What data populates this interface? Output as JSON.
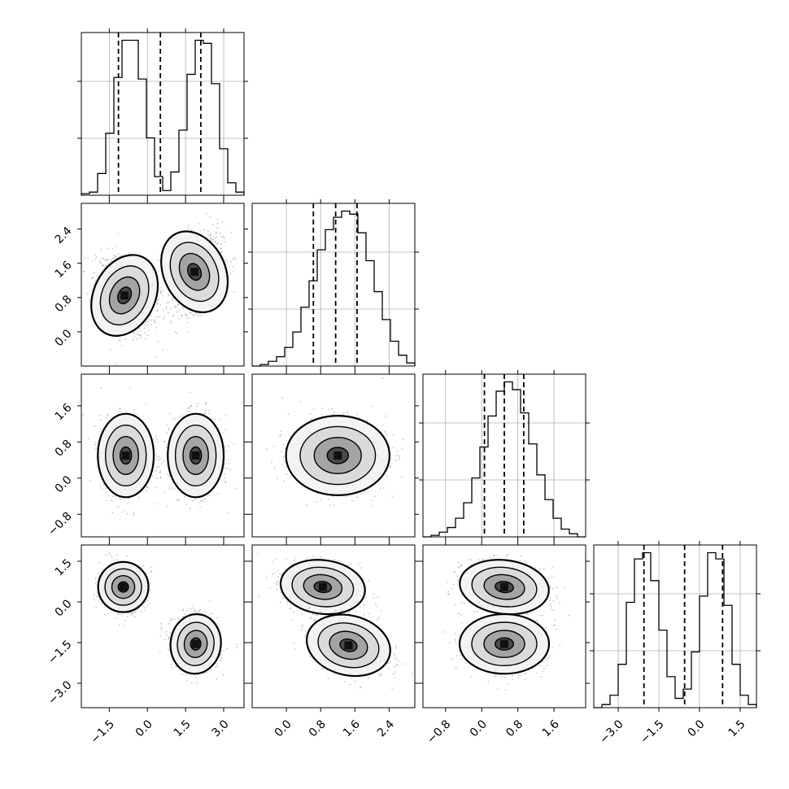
{
  "chart_data": {
    "type": "corner",
    "parameters": 4,
    "grid": true,
    "colors": {
      "hist": "#000000",
      "contour": "#000000",
      "points": "#7f7f7f",
      "grid": "#b0b0b0"
    },
    "diagonal": [
      {
        "param": 0,
        "xlim": [
          -2.6,
          3.8
        ],
        "quantile_lines": [
          -1.14,
          0.51,
          2.1
        ],
        "bins": [
          {
            "x": -2.6,
            "y": 1
          },
          {
            "x": -2.28,
            "y": 2
          },
          {
            "x": -1.96,
            "y": 14
          },
          {
            "x": -1.64,
            "y": 40
          },
          {
            "x": -1.32,
            "y": 76
          },
          {
            "x": -1.0,
            "y": 100
          },
          {
            "x": -0.68,
            "y": 100
          },
          {
            "x": -0.36,
            "y": 75
          },
          {
            "x": -0.04,
            "y": 37
          },
          {
            "x": 0.28,
            "y": 12
          },
          {
            "x": 0.6,
            "y": 3
          },
          {
            "x": 0.92,
            "y": 15
          },
          {
            "x": 1.24,
            "y": 42
          },
          {
            "x": 1.56,
            "y": 78
          },
          {
            "x": 1.88,
            "y": 100
          },
          {
            "x": 2.2,
            "y": 98
          },
          {
            "x": 2.52,
            "y": 72
          },
          {
            "x": 2.84,
            "y": 30
          },
          {
            "x": 3.16,
            "y": 8
          },
          {
            "x": 3.48,
            "y": 2
          }
        ],
        "hist_max": 100
      },
      {
        "param": 1,
        "xlim": [
          -0.8,
          3.0
        ],
        "quantile_lines": [
          0.63,
          1.15,
          1.65
        ],
        "bins": [
          {
            "x": -0.8,
            "y": 0
          },
          {
            "x": -0.61,
            "y": 1
          },
          {
            "x": -0.42,
            "y": 3
          },
          {
            "x": -0.23,
            "y": 6
          },
          {
            "x": -0.04,
            "y": 12
          },
          {
            "x": 0.15,
            "y": 22
          },
          {
            "x": 0.34,
            "y": 38
          },
          {
            "x": 0.53,
            "y": 55
          },
          {
            "x": 0.72,
            "y": 75
          },
          {
            "x": 0.91,
            "y": 88
          },
          {
            "x": 1.1,
            "y": 96
          },
          {
            "x": 1.29,
            "y": 100
          },
          {
            "x": 1.48,
            "y": 98
          },
          {
            "x": 1.67,
            "y": 86
          },
          {
            "x": 1.86,
            "y": 68
          },
          {
            "x": 2.05,
            "y": 48
          },
          {
            "x": 2.24,
            "y": 30
          },
          {
            "x": 2.43,
            "y": 16
          },
          {
            "x": 2.62,
            "y": 7
          },
          {
            "x": 2.81,
            "y": 2
          }
        ],
        "hist_max": 100
      },
      {
        "param": 2,
        "xlim": [
          -1.3,
          2.3
        ],
        "quantile_lines": [
          0.06,
          0.5,
          0.93
        ],
        "bins": [
          {
            "x": -1.3,
            "y": 0
          },
          {
            "x": -1.12,
            "y": 1
          },
          {
            "x": -0.94,
            "y": 3
          },
          {
            "x": -0.76,
            "y": 6
          },
          {
            "x": -0.58,
            "y": 12
          },
          {
            "x": -0.4,
            "y": 22
          },
          {
            "x": -0.22,
            "y": 38
          },
          {
            "x": -0.04,
            "y": 58
          },
          {
            "x": 0.14,
            "y": 78
          },
          {
            "x": 0.32,
            "y": 94
          },
          {
            "x": 0.5,
            "y": 100
          },
          {
            "x": 0.68,
            "y": 95
          },
          {
            "x": 0.86,
            "y": 80
          },
          {
            "x": 1.04,
            "y": 60
          },
          {
            "x": 1.22,
            "y": 40
          },
          {
            "x": 1.4,
            "y": 24
          },
          {
            "x": 1.58,
            "y": 12
          },
          {
            "x": 1.76,
            "y": 5
          },
          {
            "x": 1.94,
            "y": 2
          },
          {
            "x": 2.12,
            "y": 0
          }
        ],
        "hist_max": 100
      },
      {
        "param": 3,
        "xlim": [
          -3.9,
          2.1
        ],
        "quantile_lines": [
          -2.05,
          -0.55,
          0.85
        ],
        "bins": [
          {
            "x": -3.9,
            "y": 0
          },
          {
            "x": -3.6,
            "y": 2
          },
          {
            "x": -3.3,
            "y": 8
          },
          {
            "x": -3.0,
            "y": 28
          },
          {
            "x": -2.7,
            "y": 68
          },
          {
            "x": -2.4,
            "y": 96
          },
          {
            "x": -2.1,
            "y": 100
          },
          {
            "x": -1.8,
            "y": 82
          },
          {
            "x": -1.5,
            "y": 50
          },
          {
            "x": -1.2,
            "y": 20
          },
          {
            "x": -0.9,
            "y": 6
          },
          {
            "x": -0.6,
            "y": 12
          },
          {
            "x": -0.3,
            "y": 36
          },
          {
            "x": 0.0,
            "y": 72
          },
          {
            "x": 0.3,
            "y": 100
          },
          {
            "x": 0.6,
            "y": 96
          },
          {
            "x": 0.9,
            "y": 66
          },
          {
            "x": 1.2,
            "y": 28
          },
          {
            "x": 1.5,
            "y": 8
          },
          {
            "x": 1.8,
            "y": 2
          }
        ],
        "hist_max": 100
      }
    ],
    "offdiagonal": [
      {
        "xparam": 0,
        "yparam": 1,
        "xlim": [
          -2.6,
          3.8
        ],
        "ylim": [
          -0.8,
          3.0
        ],
        "clusters": [
          {
            "cx": -0.9,
            "cy": 0.85,
            "sx": 0.55,
            "sy": 0.45,
            "rho": -0.35
          },
          {
            "cx": 1.85,
            "cy": 1.4,
            "sx": 0.55,
            "sy": 0.45,
            "rho": 0.35
          }
        ]
      },
      {
        "xparam": 0,
        "yparam": 2,
        "xlim": [
          -2.6,
          3.8
        ],
        "ylim": [
          -1.3,
          2.3
        ],
        "clusters": [
          {
            "cx": -0.85,
            "cy": 0.5,
            "sx": 0.5,
            "sy": 0.42,
            "rho": 0.0
          },
          {
            "cx": 1.9,
            "cy": 0.5,
            "sx": 0.5,
            "sy": 0.42,
            "rho": 0.0
          }
        ]
      },
      {
        "xparam": 0,
        "yparam": 3,
        "xlim": [
          -2.6,
          3.8
        ],
        "ylim": [
          -3.9,
          2.1
        ],
        "clusters": [
          {
            "cx": -0.95,
            "cy": 0.55,
            "sx": 0.45,
            "sy": 0.42,
            "rho": 0.0
          },
          {
            "cx": 1.9,
            "cy": -1.55,
            "sx": 0.45,
            "sy": 0.5,
            "rho": -0.1
          }
        ]
      },
      {
        "xparam": 1,
        "yparam": 2,
        "xlim": [
          -0.8,
          3.0
        ],
        "ylim": [
          -1.3,
          2.3
        ],
        "clusters": [
          {
            "cx": 1.2,
            "cy": 0.5,
            "sx": 0.55,
            "sy": 0.4,
            "rho": 0.0
          }
        ]
      },
      {
        "xparam": 1,
        "yparam": 3,
        "xlim": [
          -0.8,
          3.0
        ],
        "ylim": [
          -3.9,
          2.1
        ],
        "clusters": [
          {
            "cx": 0.85,
            "cy": 0.55,
            "sx": 0.45,
            "sy": 0.45,
            "rho": -0.2
          },
          {
            "cx": 1.45,
            "cy": -1.6,
            "sx": 0.45,
            "sy": 0.5,
            "rho": -0.35
          }
        ]
      },
      {
        "xparam": 2,
        "yparam": 3,
        "xlim": [
          -1.3,
          2.3
        ],
        "ylim": [
          -3.9,
          2.1
        ],
        "clusters": [
          {
            "cx": 0.5,
            "cy": 0.55,
            "sx": 0.45,
            "sy": 0.45,
            "rho": -0.2
          },
          {
            "cx": 0.5,
            "cy": -1.55,
            "sx": 0.45,
            "sy": 0.5,
            "rho": 0.0
          }
        ]
      }
    ],
    "x_tick_labels": [
      {
        "param": 0,
        "ticks": [
          -1.5,
          0.0,
          1.5,
          3.0
        ],
        "labels": [
          "−1.5",
          "0.0",
          "1.5",
          "3.0"
        ]
      },
      {
        "param": 1,
        "ticks": [
          0.0,
          0.8,
          1.6,
          2.4
        ],
        "labels": [
          "0.0",
          "0.8",
          "1.6",
          "2.4"
        ]
      },
      {
        "param": 2,
        "ticks": [
          -0.8,
          0.0,
          0.8,
          1.6
        ],
        "labels": [
          "−0.8",
          "0.0",
          "0.8",
          "1.6"
        ]
      },
      {
        "param": 3,
        "ticks": [
          -3.0,
          -1.5,
          0.0,
          1.5
        ],
        "labels": [
          "−3.0",
          "−1.5",
          "0.0",
          "1.5"
        ]
      }
    ],
    "y_tick_labels": [
      {
        "param": 1,
        "ticks": [
          0.0,
          0.8,
          1.6,
          2.4
        ],
        "labels": [
          "0.0",
          "0.8",
          "1.6",
          "2.4"
        ]
      },
      {
        "param": 2,
        "ticks": [
          -0.8,
          0.0,
          0.8,
          1.6
        ],
        "labels": [
          "−0.8",
          "0.0",
          "0.8",
          "1.6"
        ]
      },
      {
        "param": 3,
        "ticks": [
          -3.0,
          -1.5,
          0.0,
          1.5
        ],
        "labels": [
          "−3.0",
          "−1.5",
          "0.0",
          "1.5"
        ]
      }
    ]
  }
}
